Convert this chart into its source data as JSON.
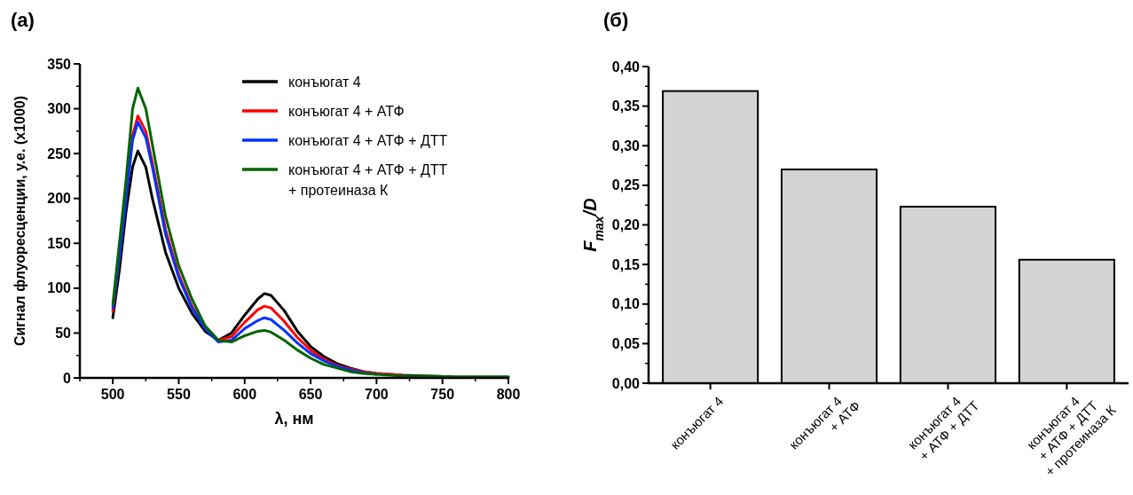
{
  "chart_data": [
    {
      "type": "line",
      "title": "(а)",
      "xlabel": "λ, нм",
      "ylabel": "Сигнал флуоресценции, у.е. (x1000)",
      "xlim": [
        475,
        800
      ],
      "xticks": [
        500,
        550,
        600,
        650,
        700,
        750,
        800
      ],
      "ylim": [
        0,
        350
      ],
      "yticks": [
        0,
        50,
        100,
        150,
        200,
        250,
        300,
        350
      ],
      "legend": "top right",
      "line_style": "solid",
      "grid": false,
      "series": [
        {
          "name": "конъюгат 4",
          "color": "#000000",
          "x": [
            500,
            505,
            510,
            515,
            519,
            525,
            530,
            540,
            550,
            560,
            570,
            580,
            590,
            600,
            610,
            615,
            620,
            630,
            640,
            650,
            660,
            670,
            680,
            690,
            700,
            720,
            740,
            760,
            800
          ],
          "values": [
            67,
            120,
            185,
            235,
            253,
            235,
            200,
            140,
            100,
            72,
            52,
            42,
            50,
            70,
            88,
            94,
            92,
            75,
            52,
            35,
            24,
            16,
            11,
            7,
            5,
            3,
            2,
            1,
            1
          ]
        },
        {
          "name": "конъюгат 4 + АТФ",
          "color": "#ff0000",
          "x": [
            500,
            505,
            510,
            515,
            519,
            525,
            530,
            540,
            550,
            560,
            570,
            580,
            590,
            600,
            610,
            615,
            620,
            630,
            640,
            650,
            660,
            670,
            680,
            690,
            700,
            720
          ],
          "values": [
            75,
            135,
            200,
            270,
            292,
            275,
            240,
            165,
            115,
            80,
            55,
            42,
            46,
            62,
            76,
            80,
            78,
            63,
            45,
            31,
            21,
            14,
            10,
            7,
            5,
            3
          ]
        },
        {
          "name": "конъюгат 4 + АТФ + ДТТ",
          "color": "#0033ff",
          "x": [
            500,
            505,
            510,
            515,
            519,
            525,
            530,
            540,
            550,
            560,
            570,
            580,
            590,
            600,
            610,
            615,
            620,
            630,
            640,
            650,
            660,
            670,
            680,
            690,
            700
          ],
          "values": [
            78,
            135,
            200,
            265,
            285,
            268,
            235,
            160,
            112,
            78,
            55,
            40,
            42,
            55,
            64,
            67,
            65,
            53,
            39,
            27,
            19,
            13,
            9,
            6,
            4
          ]
        },
        {
          "name": "конъюгат 4 + АТФ + ДТТ\n+ протеиназа К",
          "color": "#006400",
          "x": [
            500,
            505,
            510,
            515,
            519,
            525,
            530,
            540,
            550,
            560,
            570,
            580,
            590,
            600,
            610,
            615,
            620,
            630,
            640,
            650,
            660,
            670,
            680,
            690,
            700,
            720,
            740,
            760,
            800
          ],
          "values": [
            82,
            150,
            220,
            300,
            323,
            300,
            260,
            180,
            125,
            88,
            58,
            42,
            40,
            47,
            52,
            53,
            51,
            42,
            31,
            22,
            15,
            11,
            7,
            5,
            4,
            2,
            2,
            1,
            1
          ]
        }
      ]
    },
    {
      "type": "bar",
      "title": "(б)",
      "ylabel": "F$_{max}$/D",
      "categories": [
        "конъюгат 4",
        "конъюгат 4\n+ АТФ",
        "конъюгат 4\n+ АТФ + ДТТ",
        "конъюгат 4\n+ АТФ + ДТТ\n+ протеиназа К"
      ],
      "values": [
        0.369,
        0.27,
        0.223,
        0.156
      ],
      "color": "#d3d3d3",
      "ylim": [
        0,
        0.4
      ],
      "grid": false,
      "yticks": [
        {
          "value": 0,
          "label": "0,00"
        },
        {
          "value": 0.05,
          "label": "0,05"
        },
        {
          "value": 0.1,
          "label": "0,10"
        },
        {
          "value": 0.15,
          "label": "0,15"
        },
        {
          "value": 0.2,
          "label": "0,20"
        },
        {
          "value": 0.25,
          "label": "0,25"
        },
        {
          "value": 0.3,
          "label": "0,30"
        },
        {
          "value": 0.35,
          "label": "0,35"
        },
        {
          "value": 0.4,
          "label": "0,40"
        }
      ]
    }
  ]
}
